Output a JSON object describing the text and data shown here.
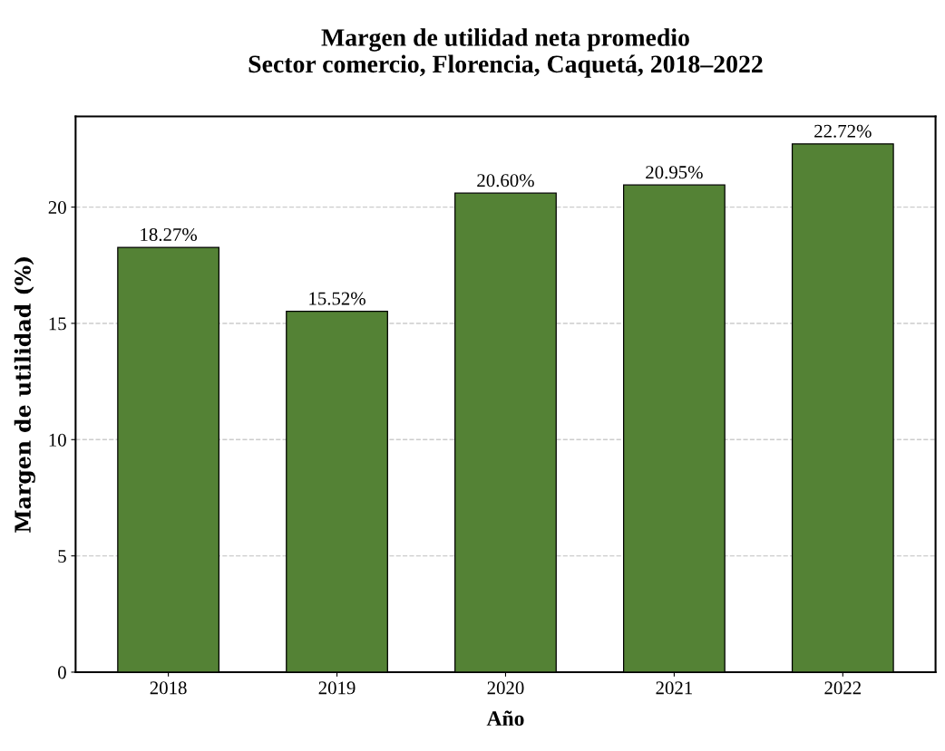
{
  "chart_data": {
    "type": "bar",
    "title": "Margen de utilidad neta promedio\nSector comercio, Florencia, Caquetá, 2018–2022",
    "xlabel": "Año",
    "ylabel": "Margen de utilidad (%)",
    "categories": [
      "2018",
      "2019",
      "2020",
      "2021",
      "2022"
    ],
    "values": [
      18.27,
      15.52,
      20.6,
      20.95,
      22.72
    ],
    "value_labels": [
      "18.27%",
      "15.52%",
      "20.60%",
      "20.95%",
      "22.72%"
    ],
    "color": "#548235",
    "ylim": [
      0,
      23.9
    ],
    "yticks": [
      0,
      5,
      10,
      15,
      20
    ],
    "grid": "y",
    "legend": false
  }
}
